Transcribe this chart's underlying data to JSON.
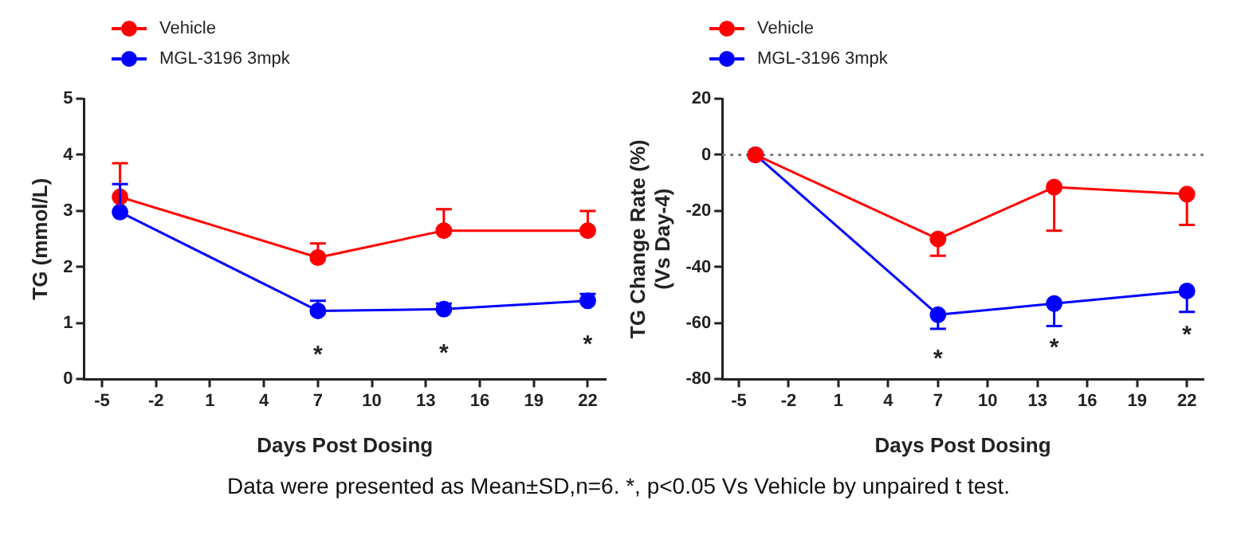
{
  "chart_data": [
    {
      "type": "line",
      "ylabel": "TG (mmol/L)",
      "xlabel": "Days Post Dosing",
      "legend": "top left",
      "marker": "circle",
      "grid": false,
      "x": [
        -4,
        7,
        14,
        22
      ],
      "xlim": [
        -6,
        23
      ],
      "xticks": [
        -5,
        -2,
        1,
        4,
        7,
        10,
        13,
        16,
        19,
        22
      ],
      "ylim": [
        0,
        5
      ],
      "yticks": [
        0,
        1,
        2,
        3,
        4,
        5
      ],
      "series": [
        {
          "name": "Vehicle",
          "color": "#ff0000",
          "values": [
            3.25,
            2.17,
            2.65,
            2.65
          ],
          "errors": [
            [
              3.25,
              3.85
            ],
            [
              2.17,
              2.42
            ],
            [
              2.65,
              3.03
            ],
            [
              2.65,
              3.0
            ]
          ]
        },
        {
          "name": "MGL-3196 3mpk",
          "color": "#0000ff",
          "values": [
            2.98,
            1.22,
            1.25,
            1.4
          ],
          "errors": [
            [
              2.98,
              3.48
            ],
            [
              1.22,
              1.4
            ],
            [
              1.25,
              1.35
            ],
            [
              1.4,
              1.52
            ]
          ]
        }
      ],
      "annotations": [
        {
          "text": "*",
          "x": 7,
          "y": 1.22
        },
        {
          "text": "*",
          "x": 14,
          "y": 1.25
        },
        {
          "text": "*",
          "x": 22,
          "y": 1.4
        }
      ]
    },
    {
      "type": "line",
      "ylabel": "TG Change Rate (%)\n(Vs Day-4)",
      "xlabel": "Days Post Dosing",
      "legend": "top left",
      "marker": "circle",
      "grid": false,
      "x": [
        -4,
        7,
        14,
        22
      ],
      "xlim": [
        -6,
        23
      ],
      "xticks": [
        -5,
        -2,
        1,
        4,
        7,
        10,
        13,
        16,
        19,
        22
      ],
      "ylim": [
        -80,
        20
      ],
      "yticks": [
        -80,
        -60,
        -40,
        -20,
        0,
        20
      ],
      "ref_lines": [
        {
          "axis": "y",
          "value": 0,
          "line_style": "dotted",
          "color": "#808080"
        }
      ],
      "series": [
        {
          "name": "Vehicle",
          "color": "#ff0000",
          "values": [
            0,
            -30,
            -11.5,
            -14
          ],
          "errors": [
            null,
            [
              -36,
              -30
            ],
            [
              -27,
              -11.5
            ],
            [
              -25,
              -14
            ]
          ]
        },
        {
          "name": "MGL-3196 3mpk",
          "color": "#0000ff",
          "values": [
            0,
            -57,
            -53,
            -48.5
          ],
          "errors": [
            null,
            [
              -62,
              -57
            ],
            [
              -61,
              -53
            ],
            [
              -56,
              -48.5
            ]
          ]
        }
      ],
      "annotations": [
        {
          "text": "*",
          "x": 7,
          "y": -57
        },
        {
          "text": "*",
          "x": 14,
          "y": -53
        },
        {
          "text": "*",
          "x": 22,
          "y": -48.5
        },
        "Data were presented as Mean±SD,n=6. *, p<0.05 Vs Vehicle by unpaired t test."
      ]
    }
  ]
}
